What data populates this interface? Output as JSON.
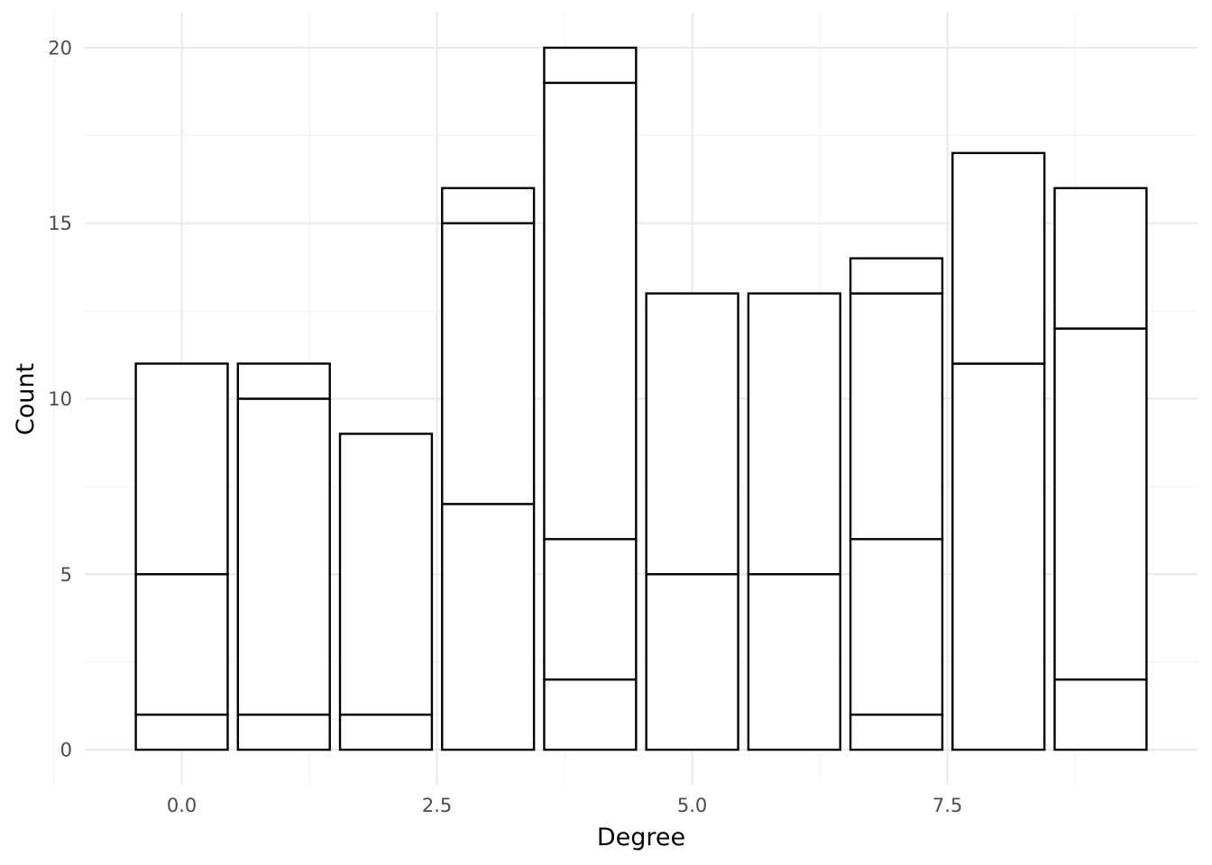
{
  "chart_data": {
    "type": "bar",
    "xlabel": "Degree",
    "ylabel": "Count",
    "xlim": [
      -0.95,
      9.95
    ],
    "ylim": [
      -1.0,
      21.0
    ],
    "x_ticks": [
      {
        "value": 0,
        "label": "0.0"
      },
      {
        "value": 2.5,
        "label": "2.5"
      },
      {
        "value": 5,
        "label": "5.0"
      },
      {
        "value": 7.5,
        "label": "7.5"
      }
    ],
    "y_ticks": [
      {
        "value": 0,
        "label": "0"
      },
      {
        "value": 5,
        "label": "5"
      },
      {
        "value": 10,
        "label": "10"
      },
      {
        "value": 15,
        "label": "15"
      },
      {
        "value": 20,
        "label": "20"
      }
    ],
    "grid": true,
    "fill_color": "#ffffff",
    "outline_color": "#000000",
    "bars": [
      {
        "x": 0,
        "boundaries": [
          0,
          1,
          5,
          11
        ]
      },
      {
        "x": 1,
        "boundaries": [
          0,
          1,
          10,
          11
        ]
      },
      {
        "x": 2,
        "boundaries": [
          0,
          1,
          9
        ]
      },
      {
        "x": 3,
        "boundaries": [
          0,
          7,
          15,
          16
        ]
      },
      {
        "x": 4,
        "boundaries": [
          0,
          2,
          6,
          19,
          20
        ]
      },
      {
        "x": 5,
        "boundaries": [
          0,
          5,
          13
        ]
      },
      {
        "x": 6,
        "boundaries": [
          0,
          5,
          13
        ]
      },
      {
        "x": 7,
        "boundaries": [
          0,
          1,
          6,
          13,
          14
        ]
      },
      {
        "x": 8,
        "boundaries": [
          0,
          11,
          17
        ]
      },
      {
        "x": 9,
        "boundaries": [
          0,
          2,
          12,
          16
        ]
      }
    ]
  }
}
